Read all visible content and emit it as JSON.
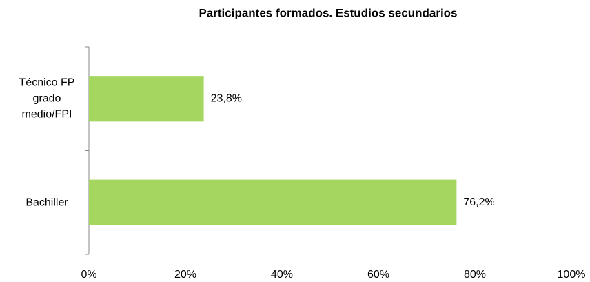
{
  "chart_data": {
    "type": "barh",
    "title": "Participantes formados. Estudios secundarios",
    "categories": [
      "Técnico FP grado medio/FPI",
      "Bachiller"
    ],
    "values": [
      23.8,
      76.2
    ],
    "value_labels": [
      "23,8%",
      "76,2%"
    ],
    "color": "#a5d65f",
    "xlim": [
      0,
      100
    ],
    "xticks": [
      {
        "value": 0,
        "label": "0%"
      },
      {
        "value": 20,
        "label": "20%"
      },
      {
        "value": 40,
        "label": "40%"
      },
      {
        "value": 60,
        "label": "60%"
      },
      {
        "value": 80,
        "label": "80%"
      },
      {
        "value": 100,
        "label": "100%"
      }
    ],
    "grid": false
  }
}
